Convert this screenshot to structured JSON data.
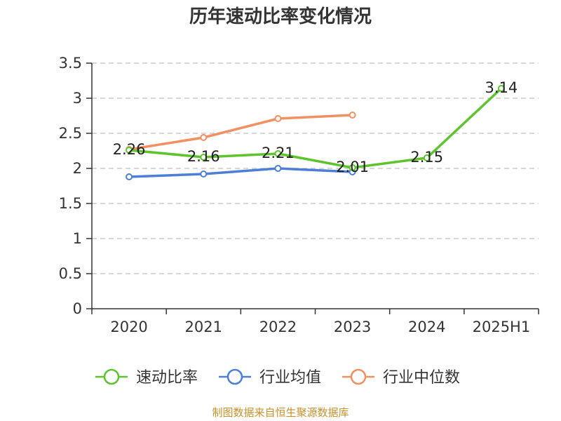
{
  "chart_data": {
    "type": "line",
    "title": "历年速动比率变化情况",
    "categories": [
      "2020",
      "2021",
      "2022",
      "2023",
      "2024",
      "2025H1"
    ],
    "yticks": [
      "0",
      "0.5",
      "1",
      "1.5",
      "2",
      "2.5",
      "3",
      "3.5"
    ],
    "ylim": [
      0,
      3.5
    ],
    "grid": true,
    "legend_position": "bottom",
    "series": [
      {
        "name": "速动比率",
        "color": "#5ec42d",
        "values": [
          2.26,
          2.16,
          2.21,
          2.01,
          2.15,
          3.14
        ],
        "labels": [
          "2.26",
          "2.16",
          "2.21",
          "2.01",
          "2.15",
          "3.14"
        ]
      },
      {
        "name": "行业均值",
        "color": "#4d7fd8",
        "values": [
          1.88,
          1.92,
          2.0,
          1.95,
          null,
          null
        ]
      },
      {
        "name": "行业中位数",
        "color": "#f39062",
        "values": [
          2.27,
          2.44,
          2.71,
          2.76,
          null,
          null
        ]
      }
    ]
  },
  "source": "制图数据来自恒生聚源数据库"
}
